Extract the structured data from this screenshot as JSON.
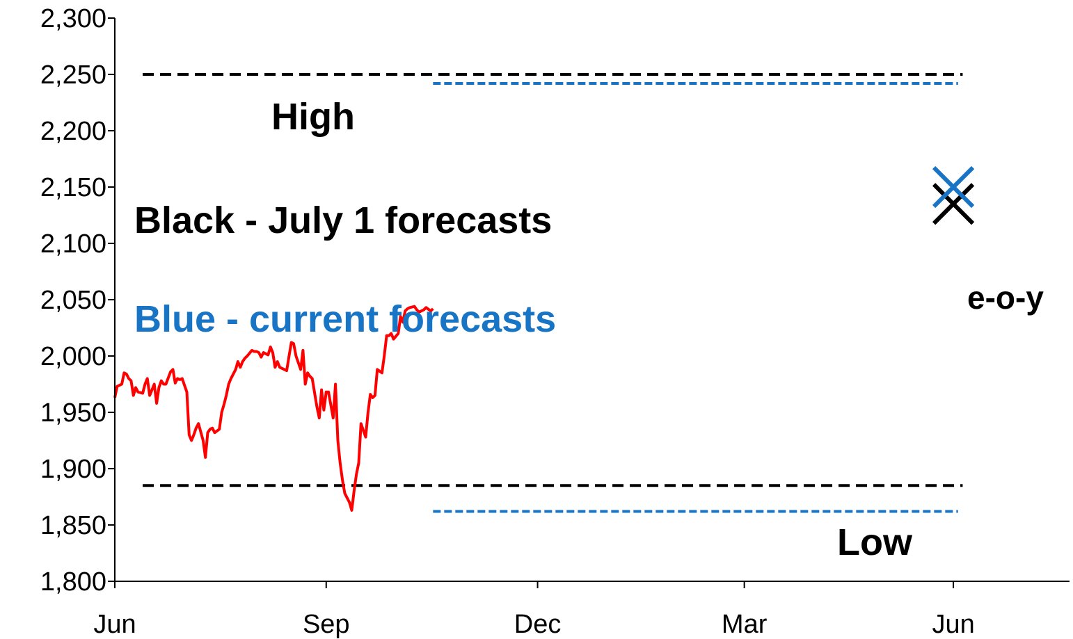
{
  "chart_data": {
    "type": "line",
    "title": "",
    "xlabel": "",
    "ylabel": "",
    "ylim": [
      1800,
      2300
    ],
    "y_ticks": [
      1800,
      1850,
      1900,
      1950,
      2000,
      2050,
      2100,
      2150,
      2200,
      2250,
      2300
    ],
    "y_tick_labels": [
      "1,800",
      "1,850",
      "1,900",
      "1,950",
      "2,000",
      "2,050",
      "2,100",
      "2,150",
      "2,200",
      "2,250",
      "2,300"
    ],
    "x_ticks": [
      0,
      91,
      182,
      271,
      361
    ],
    "x_tick_labels": [
      "Jun",
      "Sep",
      "Dec",
      "Mar",
      "Jun"
    ],
    "xlim": [
      0,
      411
    ],
    "grid": false,
    "colors": {
      "price": "#ff0000",
      "july": "#000000",
      "current": "#1874c4"
    },
    "series": [
      {
        "kind": "price",
        "x_days": [
          0,
          1,
          3,
          4,
          5,
          6,
          7,
          8,
          9,
          10,
          12,
          13,
          14,
          15,
          17,
          18,
          19,
          20,
          21,
          22,
          24,
          25,
          26,
          27,
          28,
          29,
          31,
          32,
          33,
          34,
          35,
          36,
          38,
          39,
          40,
          41,
          42,
          43,
          45,
          46,
          47,
          48,
          49,
          50,
          52,
          53,
          54,
          55,
          56,
          57,
          59,
          60,
          61,
          62,
          63,
          64,
          66,
          67,
          68,
          69,
          70,
          71,
          73,
          74,
          75,
          76,
          77,
          78,
          80,
          81,
          82,
          83,
          84,
          85,
          87,
          88,
          89,
          90,
          91,
          92,
          94,
          95,
          96,
          97,
          98,
          99,
          101,
          102,
          103,
          104,
          105,
          106,
          108,
          109,
          110,
          111,
          112,
          113,
          115,
          116,
          117,
          118,
          119,
          120,
          122,
          123,
          124,
          125,
          126,
          127,
          129,
          130,
          131,
          132,
          133,
          134,
          136,
          137
        ],
        "values": [
          1963,
          1973,
          1975,
          1985,
          1984,
          1980,
          1978,
          1965,
          1972,
          1968,
          1967,
          1975,
          1980,
          1965,
          1975,
          1958,
          1972,
          1978,
          1975,
          1975,
          1986,
          1988,
          1976,
          1980,
          1979,
          1980,
          1968,
          1930,
          1925,
          1930,
          1936,
          1940,
          1925,
          1910,
          1932,
          1935,
          1936,
          1932,
          1935,
          1950,
          1957,
          1965,
          1975,
          1980,
          1988,
          1995,
          1990,
          1995,
          1998,
          2000,
          2005,
          2004,
          2004,
          2003,
          1999,
          2003,
          2001,
          2008,
          2003,
          1990,
          1995,
          1990,
          1988,
          1987,
          2000,
          2012,
          2011,
          2000,
          1988,
          2005,
          1975,
          1985,
          1982,
          1980,
          1955,
          1945,
          1970,
          1952,
          1968,
          1968,
          1945,
          1975,
          1925,
          1905,
          1890,
          1878,
          1870,
          1863,
          1880,
          1895,
          1905,
          1940,
          1928,
          1950,
          1966,
          1963,
          1965,
          1988,
          1985,
          2000,
          2018,
          2018,
          2020,
          2015,
          2020,
          2035,
          2030,
          2040,
          2042,
          2043,
          2044,
          2041,
          2039,
          2040,
          2041,
          2043,
          2040,
          2042
        ]
      }
    ],
    "forecasts": {
      "july": {
        "high": 2250,
        "low": 1885,
        "eoy": 2135,
        "range_x_days": [
          12,
          365
        ]
      },
      "current": {
        "high": 2242,
        "low": 1862,
        "eoy": 2150,
        "range_x_days": [
          137,
          363
        ]
      },
      "eoy_x_day": 361
    },
    "annotations": {
      "high": "High",
      "low": "Low",
      "eoy": "e-o-y",
      "black_legend": "Black - July 1 forecasts",
      "blue_legend": "Blue - current forecasts"
    }
  }
}
